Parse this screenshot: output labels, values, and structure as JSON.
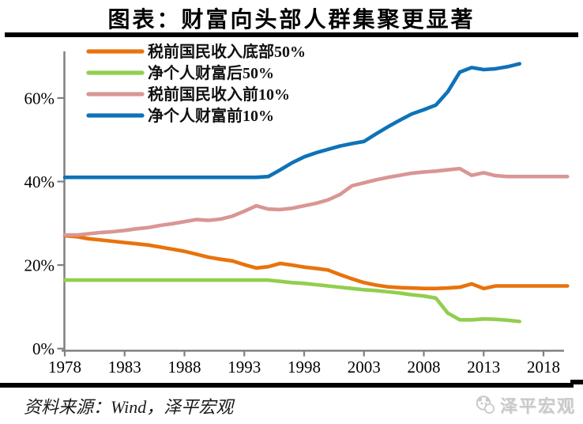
{
  "header": {
    "title": "图表：财富向头部人群集聚更显著"
  },
  "footer": {
    "source": "资料来源：Wind，泽平宏观",
    "brand": "泽平宏观",
    "brand_icon": "panda-chat-bubble-logo"
  },
  "chart_data": {
    "type": "line",
    "title": "图表：财富向头部人群集聚更显著",
    "xlabel": "",
    "ylabel": "",
    "xlim": [
      1978,
      2020
    ],
    "ylim": [
      0,
      70
    ],
    "grid": false,
    "legend_position": "top-left",
    "axis_color": "#808080",
    "x_ticks": [
      "1978",
      "1983",
      "1988",
      "1993",
      "1998",
      "2003",
      "2008",
      "2013",
      "2018"
    ],
    "y_ticks": [
      "0%",
      "20%",
      "40%",
      "60%"
    ],
    "series": [
      {
        "id": "pretax-income-bottom50",
        "name": "税前国民收入底部50%",
        "color": "#E8730C",
        "x_start": 1978,
        "x_end": 2020,
        "values": [
          27.0,
          26.8,
          26.3,
          26.0,
          25.7,
          25.4,
          25.1,
          24.8,
          24.3,
          23.8,
          23.3,
          22.6,
          21.9,
          21.4,
          21.0,
          20.1,
          19.3,
          19.6,
          20.4,
          20.0,
          19.5,
          19.2,
          18.8,
          17.7,
          16.7,
          15.8,
          15.2,
          14.8,
          14.6,
          14.5,
          14.4,
          14.4,
          14.5,
          14.7,
          15.5,
          14.4,
          15.0,
          15.0,
          15.0,
          15.0,
          15.0,
          15.0,
          15.0
        ]
      },
      {
        "id": "net-wealth-bottom50",
        "name": "净个人财富后50%",
        "color": "#92CE4E",
        "x_start": 1978,
        "x_end": 2016,
        "values": [
          16.4,
          16.4,
          16.4,
          16.4,
          16.4,
          16.4,
          16.4,
          16.4,
          16.4,
          16.4,
          16.4,
          16.4,
          16.4,
          16.4,
          16.4,
          16.4,
          16.4,
          16.4,
          16.1,
          15.8,
          15.6,
          15.3,
          15.0,
          14.7,
          14.4,
          14.1,
          13.9,
          13.6,
          13.3,
          12.9,
          12.6,
          12.1,
          8.5,
          6.9,
          6.9,
          7.1,
          7.0,
          6.8,
          6.5
        ]
      },
      {
        "id": "pretax-income-top10",
        "name": "税前国民收入前10%",
        "color": "#D99694",
        "x_start": 1978,
        "x_end": 2020,
        "values": [
          27.2,
          27.2,
          27.5,
          27.8,
          28.0,
          28.3,
          28.7,
          29.0,
          29.5,
          29.9,
          30.4,
          30.9,
          30.7,
          31.0,
          31.7,
          32.9,
          34.2,
          33.4,
          33.3,
          33.6,
          34.2,
          34.8,
          35.6,
          36.9,
          39.0,
          39.7,
          40.4,
          41.0,
          41.5,
          42.0,
          42.3,
          42.5,
          42.8,
          43.1,
          41.5,
          42.1,
          41.4,
          41.2,
          41.2,
          41.2,
          41.2,
          41.2,
          41.2
        ]
      },
      {
        "id": "net-wealth-top10",
        "name": "净个人财富前10%",
        "color": "#0E72B8",
        "x_start": 1978,
        "x_end": 2016,
        "values": [
          41.0,
          41.0,
          41.0,
          41.0,
          41.0,
          41.0,
          41.0,
          41.0,
          41.0,
          41.0,
          41.0,
          41.0,
          41.0,
          41.0,
          41.0,
          41.0,
          41.0,
          41.2,
          42.8,
          44.5,
          45.9,
          46.9,
          47.7,
          48.5,
          49.1,
          49.6,
          51.4,
          53.1,
          54.7,
          56.2,
          57.2,
          58.3,
          61.5,
          66.2,
          67.3,
          66.8,
          67.0,
          67.5,
          68.2
        ]
      }
    ]
  }
}
